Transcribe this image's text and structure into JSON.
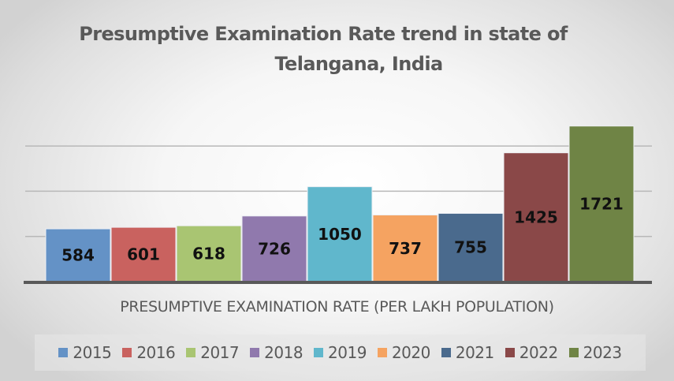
{
  "chart_data": {
    "type": "bar",
    "title": "Presumptive Examination Rate trend in state of Telangana, India",
    "title_lines": [
      "Presumptive Examination Rate trend in state of",
      "Telangana, India"
    ],
    "xlabel": "PRESUMPTIVE EXAMINATION RATE (PER LAKH POPULATION)",
    "ylabel": "",
    "categories": [
      "PRESUMPTIVE EXAMINATION RATE (PER LAKH POPULATION)"
    ],
    "series": [
      {
        "name": "2015",
        "values": [
          584
        ],
        "color": "#6492c6"
      },
      {
        "name": "2016",
        "values": [
          601
        ],
        "color": "#c9625f"
      },
      {
        "name": "2017",
        "values": [
          618
        ],
        "color": "#a9c572"
      },
      {
        "name": "2018",
        "values": [
          726
        ],
        "color": "#9079ad"
      },
      {
        "name": "2019",
        "values": [
          1050
        ],
        "color": "#60b7cc"
      },
      {
        "name": "2020",
        "values": [
          737
        ],
        "color": "#f5a361"
      },
      {
        "name": "2021",
        "values": [
          755
        ],
        "color": "#4a6a8d"
      },
      {
        "name": "2022",
        "values": [
          1425
        ],
        "color": "#8a4848"
      },
      {
        "name": "2023",
        "values": [
          1721
        ],
        "color": "#6f8445"
      }
    ],
    "ylim": [
      0,
      2000
    ],
    "gridlines": [
      500,
      1000,
      1500
    ],
    "grid": true,
    "y_tick_labels_visible": false,
    "data_labels": true,
    "legend_position": "bottom"
  }
}
